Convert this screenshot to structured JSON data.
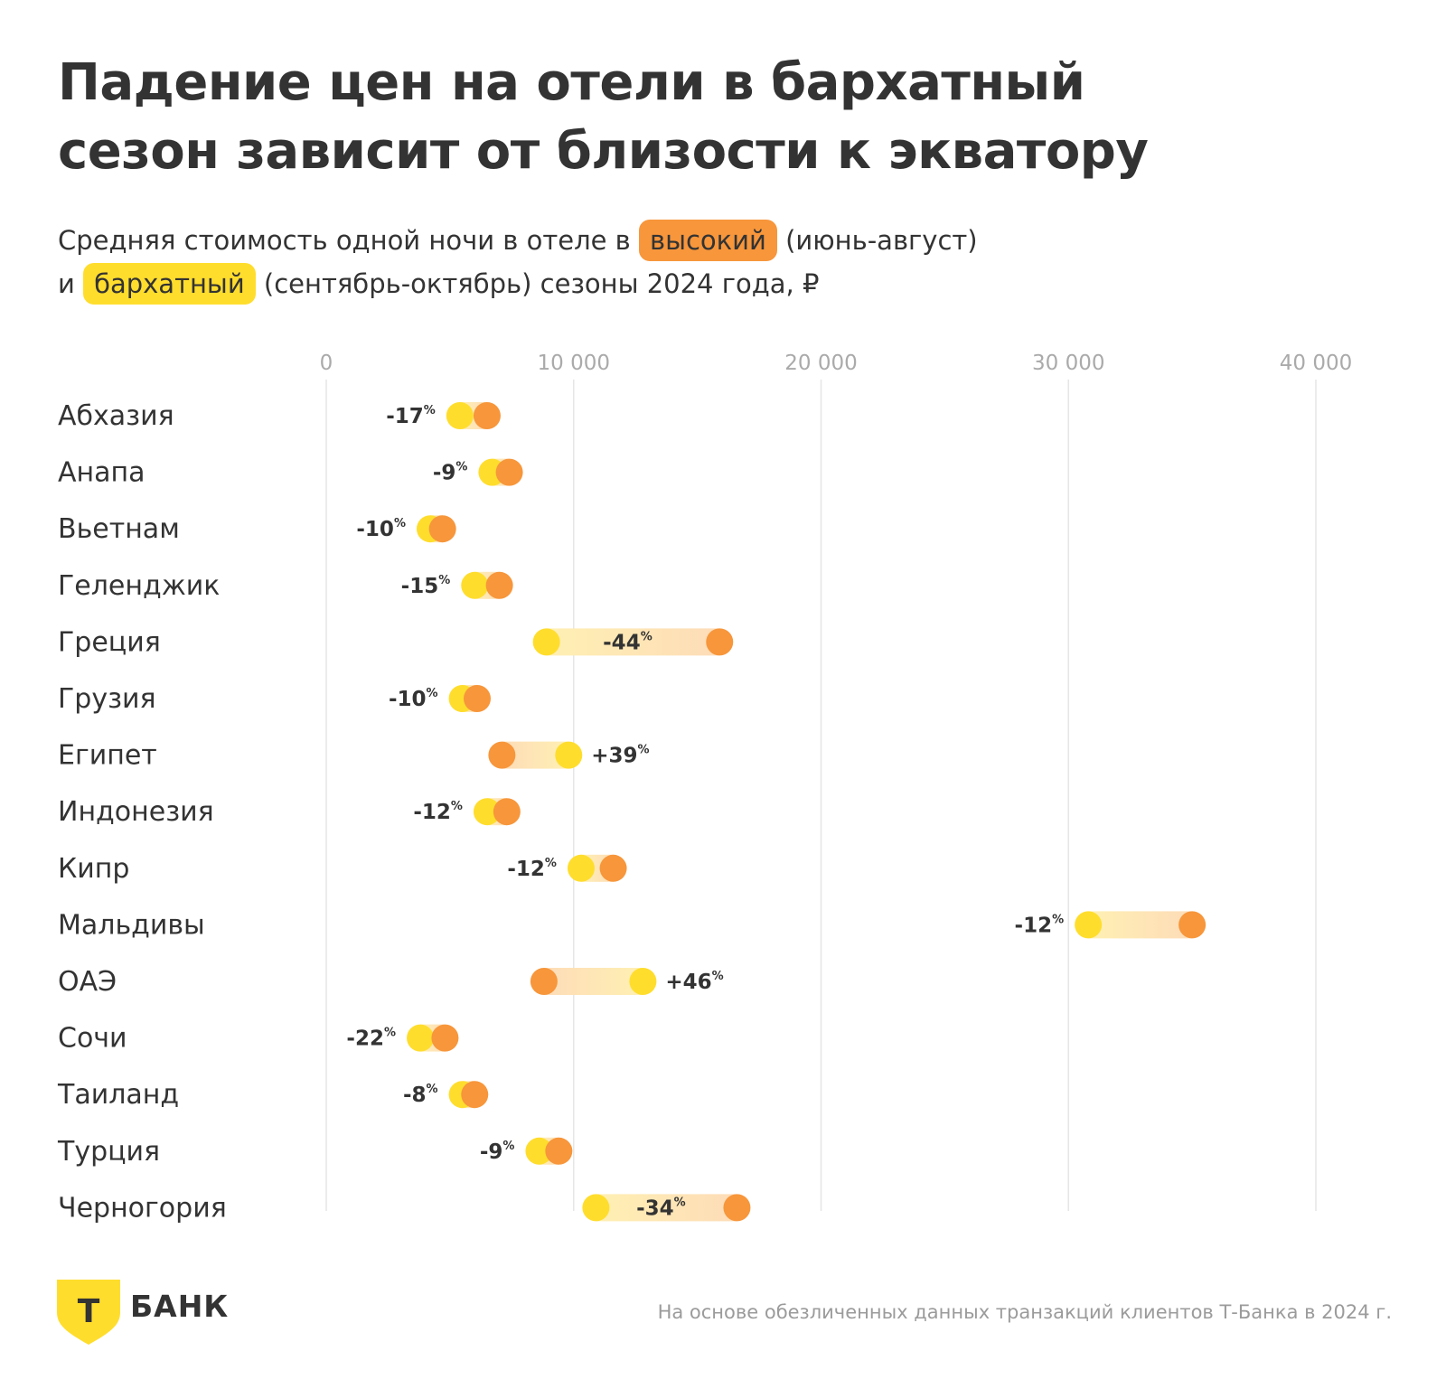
{
  "title_line1": "Падение цен на отели в бархатный",
  "title_line2": "сезон зависит от близости к экватору",
  "subtitle": {
    "part1": "Средняя стоимость одной ночи в отеле в",
    "high_label": "высокий",
    "part2": "(июнь-август)",
    "part3": "и",
    "velvet_label": "бархатный",
    "part4": "(сентябрь-октябрь) сезоны 2024 года, ₽"
  },
  "colors": {
    "high": "#f7963b",
    "velvet": "#ffdd2d",
    "text": "#333333",
    "muted": "#9b9b9b",
    "grid": "#e6e6e6"
  },
  "chart_data": {
    "type": "dumbbell",
    "xlim": [
      0,
      40000
    ],
    "ticks": [
      0,
      10000,
      20000,
      30000,
      40000
    ],
    "tick_labels": [
      "0",
      "10 000",
      "20 000",
      "30 000",
      "40 000"
    ],
    "grid": true,
    "series": [
      {
        "name": "высокий",
        "color": "#f7963b"
      },
      {
        "name": "бархатный",
        "color": "#ffdd2d"
      }
    ],
    "rows": [
      {
        "label": "Абхазия",
        "high": 6500,
        "velvet": 5400,
        "change": "-17"
      },
      {
        "label": "Анапа",
        "high": 7400,
        "velvet": 6700,
        "change": "-9"
      },
      {
        "label": "Вьетнам",
        "high": 4700,
        "velvet": 4200,
        "change": "-10"
      },
      {
        "label": "Геленджик",
        "high": 7000,
        "velvet": 6000,
        "change": "-15"
      },
      {
        "label": "Греция",
        "high": 15900,
        "velvet": 8900,
        "change": "-44"
      },
      {
        "label": "Грузия",
        "high": 6100,
        "velvet": 5500,
        "change": "-10"
      },
      {
        "label": "Египет",
        "high": 7100,
        "velvet": 9800,
        "change": "+39"
      },
      {
        "label": "Индонезия",
        "high": 7300,
        "velvet": 6500,
        "change": "-12"
      },
      {
        "label": "Кипр",
        "high": 11600,
        "velvet": 10300,
        "change": "-12"
      },
      {
        "label": "Мальдивы",
        "high": 35000,
        "velvet": 30800,
        "change": "-12"
      },
      {
        "label": "ОАЭ",
        "high": 8800,
        "velvet": 12800,
        "change": "+46"
      },
      {
        "label": "Сочи",
        "high": 4800,
        "velvet": 3800,
        "change": "-22"
      },
      {
        "label": "Таиланд",
        "high": 6000,
        "velvet": 5500,
        "change": "-8"
      },
      {
        "label": "Турция",
        "high": 9400,
        "velvet": 8600,
        "change": "-9"
      },
      {
        "label": "Черногория",
        "high": 16600,
        "velvet": 10900,
        "change": "-34"
      }
    ]
  },
  "footer": {
    "logo_letter": "Т",
    "brand": "БАНК",
    "note": "На основе обезличенных данных транзакций клиентов Т-Банка в 2024 г."
  }
}
